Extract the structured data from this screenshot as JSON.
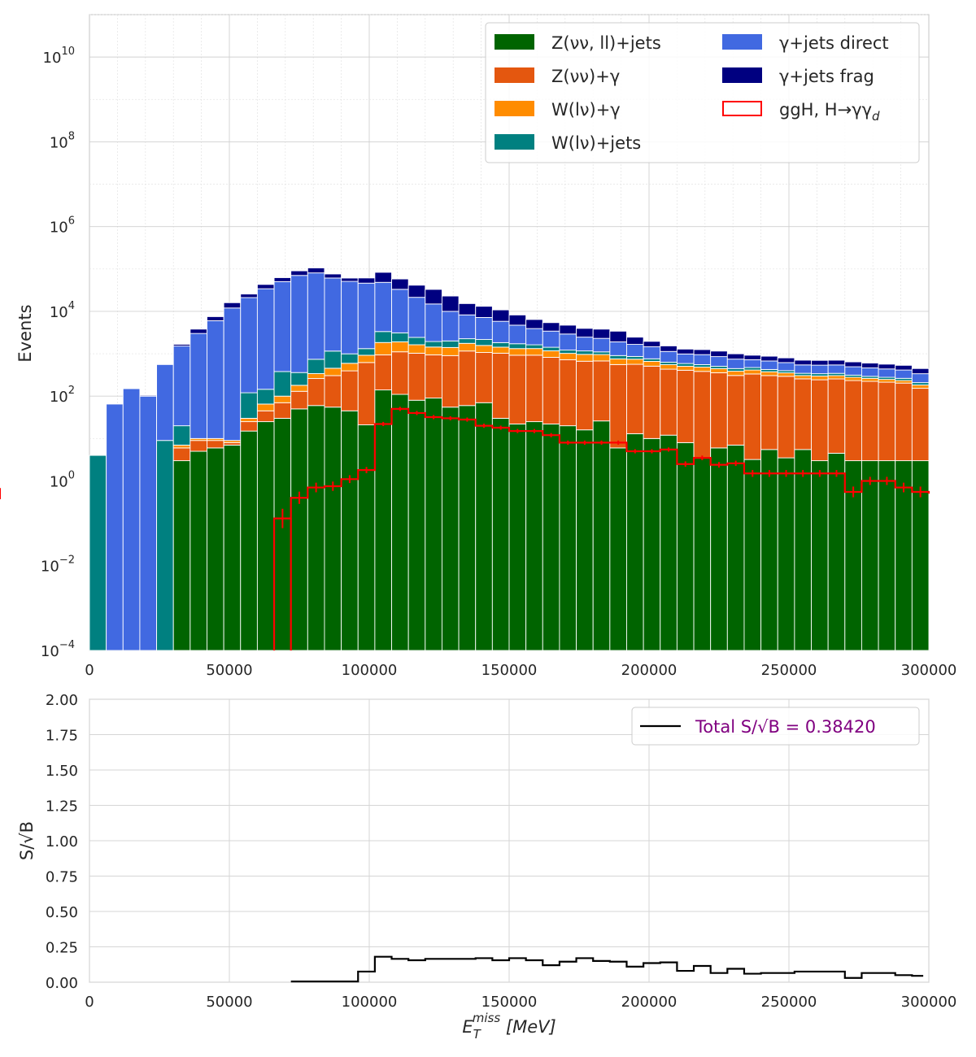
{
  "chart_data": [
    {
      "type": "bar",
      "stacked": true,
      "scale": "log",
      "ylabel": "Events",
      "xlim": [
        0,
        300000
      ],
      "ylim": [
        0.0001,
        100000000000
      ],
      "grid": true,
      "legend_position": "top-right",
      "bin_width": 6000,
      "x_ticks": [
        "0",
        "50000",
        "100000",
        "150000",
        "200000",
        "250000",
        "300000"
      ],
      "y_ticks": [
        {
          "base": "10",
          "exp": "10",
          "value": 10000000000
        },
        {
          "base": "10",
          "exp": "8",
          "value": 100000000
        },
        {
          "base": "10",
          "exp": "6",
          "value": 1000000
        },
        {
          "base": "10",
          "exp": "4",
          "value": 10000
        },
        {
          "base": "10",
          "exp": "2",
          "value": 100
        },
        {
          "base": "10",
          "exp": "0",
          "value": 1
        },
        {
          "base": "10",
          "exp": "−2",
          "value": 0.01
        },
        {
          "base": "10",
          "exp": "−4",
          "value": 0.0001
        }
      ],
      "background_cumulative": {
        "description_of_arrays": "cumulative stack tops per bin, bottom to top",
        "bin_centers": [
          3000,
          9000,
          15000,
          21000,
          27000,
          33000,
          39000,
          45000,
          51000,
          57000,
          63000,
          69000,
          75000,
          81000,
          87000,
          93000,
          99000,
          105000,
          111000,
          117000,
          123000,
          129000,
          135000,
          141000,
          147000,
          153000,
          159000,
          165000,
          171000,
          177000,
          183000,
          189000,
          195000,
          201000,
          207000,
          213000,
          219000,
          225000,
          231000,
          237000,
          243000,
          249000,
          255000,
          261000,
          267000,
          273000,
          279000,
          285000,
          291000,
          297000
        ]
      },
      "series": [
        {
          "name": "Z(νν, ll)+jets",
          "color": "#006400",
          "values": [
            0,
            0,
            0,
            0,
            0,
            3,
            5,
            6,
            7,
            15,
            25,
            30,
            50,
            60,
            55,
            45,
            21,
            140,
            110,
            80,
            90,
            55,
            60,
            70,
            30,
            22,
            25,
            22,
            20,
            16,
            26,
            6,
            13,
            10,
            12,
            8,
            3.5,
            6,
            7,
            3.2,
            5.5,
            3.5,
            5.5,
            3,
            4.5,
            3,
            3,
            3,
            3,
            3
          ]
        },
        {
          "name": "Z(νν)+γ",
          "color": "#E4570F",
          "values": [
            0,
            0,
            0,
            0,
            0,
            3,
            4,
            3,
            1,
            10,
            20,
            40,
            80,
            200,
            250,
            350,
            600,
            800,
            1000,
            950,
            850,
            850,
            1100,
            1000,
            1000,
            900,
            900,
            800,
            700,
            650,
            650,
            550,
            550,
            500,
            420,
            400,
            380,
            350,
            300,
            330,
            300,
            290,
            250,
            240,
            250,
            230,
            220,
            210,
            200,
            150
          ]
        },
        {
          "name": "W(lν)+γ",
          "color": "#FF8C00",
          "values": [
            0,
            0,
            0,
            0,
            0,
            1,
            1,
            1,
            1,
            5,
            20,
            30,
            50,
            80,
            150,
            200,
            300,
            900,
            800,
            600,
            500,
            500,
            600,
            500,
            400,
            400,
            400,
            350,
            300,
            300,
            280,
            200,
            180,
            150,
            120,
            100,
            100,
            90,
            80,
            80,
            70,
            60,
            50,
            55,
            50,
            45,
            40,
            35,
            30,
            30
          ]
        },
        {
          "name": "W(lν)+jets",
          "color": "#008080",
          "values": [
            4,
            0,
            0,
            0,
            9,
            13,
            0,
            0,
            0,
            90,
            80,
            280,
            180,
            400,
            700,
            400,
            400,
            1500,
            1200,
            800,
            500,
            600,
            500,
            600,
            400,
            400,
            300,
            250,
            200,
            200,
            150,
            150,
            120,
            100,
            80,
            80,
            70,
            60,
            60,
            60,
            50,
            45,
            40,
            40,
            40,
            35,
            30,
            30,
            30,
            25
          ]
        },
        {
          "name": "γ+jets direct",
          "color": "#4169E1",
          "values": [
            0,
            65,
            150,
            100,
            550,
            1500,
            3000,
            6000,
            12000,
            21000,
            34000,
            50000,
            70000,
            80000,
            60000,
            50000,
            45000,
            45000,
            30000,
            19000,
            13000,
            8000,
            6000,
            5000,
            4000,
            3000,
            2300,
            2000,
            1700,
            1300,
            1200,
            1000,
            800,
            700,
            500,
            400,
            400,
            350,
            300,
            250,
            250,
            220,
            200,
            200,
            200,
            180,
            170,
            160,
            150,
            130
          ]
        },
        {
          "name": "γ+jets frag",
          "color": "#000080",
          "values": [
            0,
            0,
            0,
            5,
            10,
            150,
            800,
            1500,
            4000,
            4500,
            9000,
            12000,
            20000,
            25000,
            15000,
            10000,
            15000,
            35000,
            25000,
            20000,
            18000,
            13000,
            7000,
            6000,
            5000,
            3500,
            2500,
            2000,
            1800,
            1500,
            1500,
            1500,
            800,
            500,
            400,
            300,
            300,
            300,
            250,
            200,
            200,
            180,
            160,
            160,
            160,
            150,
            140,
            130,
            120,
            110
          ]
        },
        {
          "name": "ggH, H→γγ_d",
          "color": "#FF0000",
          "outline": true,
          "edges": [
            66000,
            72000,
            78000,
            84000,
            90000,
            96000,
            102000,
            108000,
            114000,
            120000,
            126000,
            132000,
            138000,
            144000,
            150000,
            156000,
            162000,
            168000,
            174000,
            180000,
            186000,
            192000,
            198000,
            204000,
            210000,
            216000,
            222000,
            228000,
            234000,
            240000,
            246000,
            252000,
            258000,
            264000,
            270000,
            276000,
            282000,
            288000,
            294000,
            300000
          ],
          "values": [
            0.13,
            0.4,
            0.7,
            0.75,
            1.1,
            1.8,
            22,
            50,
            40,
            32,
            30,
            28,
            20,
            18,
            15,
            15,
            12,
            8,
            8,
            8,
            8,
            5,
            5,
            5.5,
            2.5,
            3.5,
            2.4,
            2.6,
            1.5,
            1.5,
            1.5,
            1.5,
            1.5,
            1.5,
            0.55,
            1,
            1,
            0.7,
            0.55,
            0.5
          ]
        }
      ]
    },
    {
      "type": "line",
      "step": true,
      "xlabel_main": "E",
      "xlabel_sub": "T",
      "xlabel_sup": "miss",
      "xlabel_unit": " [MeV]",
      "ylabel": "S/√B",
      "xlim": [
        0,
        300000
      ],
      "ylim": [
        0,
        2
      ],
      "grid": true,
      "legend_position": "top-right",
      "legend_label": "Total S/√B = 0.38420",
      "legend_text_color": "#800080",
      "line_color": "#000000",
      "x_ticks": [
        "0",
        "50000",
        "100000",
        "150000",
        "200000",
        "250000",
        "300000"
      ],
      "y_ticks": [
        "0.00",
        "0.25",
        "0.50",
        "0.75",
        "1.00",
        "1.25",
        "1.50",
        "1.75",
        "2.00"
      ],
      "edges": [
        72000,
        96000,
        102000,
        108000,
        114000,
        120000,
        126000,
        132000,
        138000,
        144000,
        150000,
        156000,
        162000,
        168000,
        174000,
        180000,
        186000,
        192000,
        198000,
        204000,
        210000,
        216000,
        222000,
        228000,
        234000,
        240000,
        246000,
        252000,
        258000,
        264000,
        270000,
        276000,
        282000,
        288000,
        294000,
        298000
      ],
      "values": [
        0.005,
        0.075,
        0.18,
        0.165,
        0.155,
        0.165,
        0.165,
        0.165,
        0.17,
        0.155,
        0.17,
        0.155,
        0.12,
        0.145,
        0.17,
        0.15,
        0.145,
        0.11,
        0.135,
        0.14,
        0.08,
        0.115,
        0.065,
        0.095,
        0.06,
        0.065,
        0.065,
        0.075,
        0.075,
        0.075,
        0.03,
        0.065,
        0.065,
        0.05,
        0.045
      ]
    }
  ]
}
